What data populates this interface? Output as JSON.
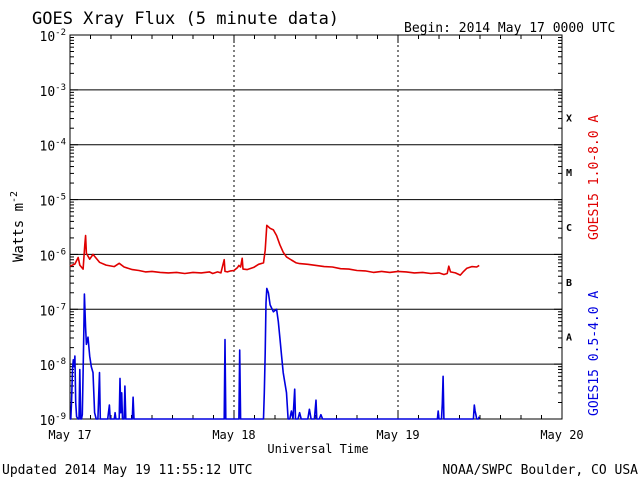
{
  "header": {
    "title": "GOES Xray Flux (5 minute data)",
    "begin": "Begin:  2014 May 17 0000 UTC"
  },
  "footer": {
    "updated": "Updated 2014 May 19 11:55:12 UTC",
    "source": "NOAA/SWPC Boulder, CO USA"
  },
  "chart_data": {
    "type": "line",
    "title": "GOES Xray Flux (5 minute data)",
    "xlabel": "Universal Time",
    "ylabel": "Watts m",
    "ylabel_superscript": "-2",
    "yscale": "log",
    "ylim": [
      1e-09,
      0.01
    ],
    "xlim_days": [
      0,
      3
    ],
    "x_ticks": [
      {
        "day": 0,
        "label": "May 17"
      },
      {
        "day": 1,
        "label": "May 18"
      },
      {
        "day": 2,
        "label": "May 19"
      },
      {
        "day": 3,
        "label": "May 20"
      }
    ],
    "y_ticks": [
      {
        "exp": -2,
        "base": "10",
        "sup": "-2"
      },
      {
        "exp": -3,
        "base": "10",
        "sup": "-3"
      },
      {
        "exp": -4,
        "base": "10",
        "sup": "-4"
      },
      {
        "exp": -5,
        "base": "10",
        "sup": "-5"
      },
      {
        "exp": -6,
        "base": "10",
        "sup": "-6"
      },
      {
        "exp": -7,
        "base": "10",
        "sup": "-7"
      },
      {
        "exp": -8,
        "base": "10",
        "sup": "-8"
      },
      {
        "exp": -9,
        "base": "10",
        "sup": "-9"
      }
    ],
    "flare_classes": [
      {
        "label": "X",
        "exp": -3.5
      },
      {
        "label": "M",
        "exp": -4.5
      },
      {
        "label": "C",
        "exp": -5.5
      },
      {
        "label": "B",
        "exp": -6.5
      },
      {
        "label": "A",
        "exp": -7.5
      }
    ],
    "grid": true,
    "series": [
      {
        "name": "GOES15 1.0-8.0 A",
        "color": "#e00000",
        "points": [
          [
            0.0,
            6.1e-07
          ],
          [
            0.03,
            6.7e-07
          ],
          [
            0.05,
            8.8e-07
          ],
          [
            0.06,
            6.4e-07
          ],
          [
            0.08,
            5.4e-07
          ],
          [
            0.09,
            1.5e-06
          ],
          [
            0.095,
            2.2e-06
          ],
          [
            0.1,
            1.05e-06
          ],
          [
            0.12,
            8.2e-07
          ],
          [
            0.14,
            1e-06
          ],
          [
            0.16,
            8.5e-07
          ],
          [
            0.18,
            7.2e-07
          ],
          [
            0.22,
            6.4e-07
          ],
          [
            0.27,
            6e-07
          ],
          [
            0.3,
            6.9e-07
          ],
          [
            0.33,
            5.9e-07
          ],
          [
            0.38,
            5.3e-07
          ],
          [
            0.42,
            5.1e-07
          ],
          [
            0.46,
            4.8e-07
          ],
          [
            0.5,
            4.9e-07
          ],
          [
            0.55,
            4.7e-07
          ],
          [
            0.6,
            4.6e-07
          ],
          [
            0.65,
            4.7e-07
          ],
          [
            0.7,
            4.5e-07
          ],
          [
            0.75,
            4.7e-07
          ],
          [
            0.8,
            4.6e-07
          ],
          [
            0.85,
            4.8e-07
          ],
          [
            0.87,
            4.5e-07
          ],
          [
            0.9,
            4.8e-07
          ],
          [
            0.92,
            4.6e-07
          ],
          [
            0.94,
            8e-07
          ],
          [
            0.945,
            4.9e-07
          ],
          [
            0.96,
            4.8e-07
          ],
          [
            0.98,
            5e-07
          ],
          [
            1.0,
            5.1e-07
          ],
          [
            1.02,
            5.7e-07
          ],
          [
            1.03,
            6.3e-07
          ],
          [
            1.04,
            5.9e-07
          ],
          [
            1.05,
            8.5e-07
          ],
          [
            1.055,
            5.4e-07
          ],
          [
            1.08,
            5.3e-07
          ],
          [
            1.12,
            5.8e-07
          ],
          [
            1.15,
            6.6e-07
          ],
          [
            1.18,
            7e-07
          ],
          [
            1.19,
            1.2e-06
          ],
          [
            1.2,
            3.4e-06
          ],
          [
            1.22,
            3e-06
          ],
          [
            1.24,
            2.8e-06
          ],
          [
            1.26,
            2.2e-06
          ],
          [
            1.28,
            1.5e-06
          ],
          [
            1.3,
            1.1e-06
          ],
          [
            1.32,
            9e-07
          ],
          [
            1.35,
            7.9e-07
          ],
          [
            1.38,
            7e-07
          ],
          [
            1.4,
            6.8e-07
          ],
          [
            1.45,
            6.6e-07
          ],
          [
            1.5,
            6.3e-07
          ],
          [
            1.55,
            6e-07
          ],
          [
            1.6,
            5.9e-07
          ],
          [
            1.65,
            5.5e-07
          ],
          [
            1.7,
            5.4e-07
          ],
          [
            1.75,
            5.1e-07
          ],
          [
            1.8,
            5e-07
          ],
          [
            1.85,
            4.7e-07
          ],
          [
            1.9,
            4.9e-07
          ],
          [
            1.95,
            4.7e-07
          ],
          [
            2.0,
            4.9e-07
          ],
          [
            2.05,
            4.8e-07
          ],
          [
            2.1,
            4.6e-07
          ],
          [
            2.15,
            4.7e-07
          ],
          [
            2.2,
            4.5e-07
          ],
          [
            2.25,
            4.6e-07
          ],
          [
            2.28,
            4.3e-07
          ],
          [
            2.3,
            4.5e-07
          ],
          [
            2.31,
            6.1e-07
          ],
          [
            2.32,
            4.8e-07
          ],
          [
            2.35,
            4.6e-07
          ],
          [
            2.38,
            4.2e-07
          ],
          [
            2.4,
            4.9e-07
          ],
          [
            2.42,
            5.6e-07
          ],
          [
            2.45,
            6e-07
          ],
          [
            2.48,
            5.9e-07
          ],
          [
            2.495,
            6.3e-07
          ]
        ]
      },
      {
        "name": "GOES15 0.5-4.0 A",
        "color": "#0000e0",
        "points": [
          [
            0.0,
            1e-09
          ],
          [
            0.005,
            1e-09
          ],
          [
            0.01,
            2.2e-09
          ],
          [
            0.015,
            8e-09
          ],
          [
            0.02,
            1.2e-08
          ],
          [
            0.025,
            9e-09
          ],
          [
            0.03,
            1.4e-08
          ],
          [
            0.035,
            2e-09
          ],
          [
            0.04,
            1.1e-09
          ],
          [
            0.05,
            1e-09
          ],
          [
            0.055,
            1e-09
          ],
          [
            0.06,
            8e-09
          ],
          [
            0.065,
            1e-09
          ],
          [
            0.07,
            1e-09
          ],
          [
            0.075,
            1.2e-09
          ],
          [
            0.08,
            7e-09
          ],
          [
            0.085,
            4.8e-08
          ],
          [
            0.088,
            1.9e-07
          ],
          [
            0.095,
            4.6e-08
          ],
          [
            0.1,
            2.3e-08
          ],
          [
            0.11,
            3.1e-08
          ],
          [
            0.12,
            1.4e-08
          ],
          [
            0.13,
            9e-09
          ],
          [
            0.14,
            7e-09
          ],
          [
            0.15,
            1.3e-09
          ],
          [
            0.16,
            1e-09
          ],
          [
            0.17,
            1e-09
          ],
          [
            0.18,
            7e-09
          ],
          [
            0.185,
            1e-09
          ],
          [
            0.2,
            1e-09
          ],
          [
            0.23,
            1e-09
          ],
          [
            0.24,
            1.8e-09
          ],
          [
            0.245,
            1e-09
          ],
          [
            0.27,
            1e-09
          ],
          [
            0.275,
            1.3e-09
          ],
          [
            0.28,
            1e-09
          ],
          [
            0.3,
            1e-09
          ],
          [
            0.305,
            5.5e-09
          ],
          [
            0.31,
            1.3e-09
          ],
          [
            0.315,
            3e-09
          ],
          [
            0.32,
            1e-09
          ],
          [
            0.33,
            1e-09
          ],
          [
            0.335,
            4e-09
          ],
          [
            0.34,
            1e-09
          ],
          [
            0.38,
            1e-09
          ],
          [
            0.385,
            2.5e-09
          ],
          [
            0.39,
            1e-09
          ],
          [
            0.5,
            1e-09
          ],
          [
            0.6,
            1e-09
          ],
          [
            0.7,
            1e-09
          ],
          [
            0.8,
            1e-09
          ],
          [
            0.9,
            1e-09
          ],
          [
            0.94,
            1e-09
          ],
          [
            0.945,
            2.8e-08
          ],
          [
            0.95,
            1e-09
          ],
          [
            1.0,
            1e-09
          ],
          [
            1.03,
            1e-09
          ],
          [
            1.035,
            1.8e-08
          ],
          [
            1.04,
            1e-09
          ],
          [
            1.1,
            1e-09
          ],
          [
            1.18,
            1e-09
          ],
          [
            1.185,
            3e-09
          ],
          [
            1.19,
            1.6e-08
          ],
          [
            1.195,
            1.3e-07
          ],
          [
            1.2,
            2.4e-07
          ],
          [
            1.21,
            2e-07
          ],
          [
            1.22,
            1.2e-07
          ],
          [
            1.24,
            9e-08
          ],
          [
            1.26,
            1e-07
          ],
          [
            1.27,
            6e-08
          ],
          [
            1.28,
            3e-08
          ],
          [
            1.29,
            1.4e-08
          ],
          [
            1.3,
            7e-09
          ],
          [
            1.32,
            3e-09
          ],
          [
            1.33,
            1e-09
          ],
          [
            1.34,
            1e-09
          ],
          [
            1.35,
            1.4e-09
          ],
          [
            1.36,
            1e-09
          ],
          [
            1.37,
            3.5e-09
          ],
          [
            1.375,
            1e-09
          ],
          [
            1.39,
            1e-09
          ],
          [
            1.4,
            1.3e-09
          ],
          [
            1.41,
            1e-09
          ],
          [
            1.45,
            1e-09
          ],
          [
            1.46,
            1.5e-09
          ],
          [
            1.47,
            1e-09
          ],
          [
            1.49,
            1e-09
          ],
          [
            1.5,
            2.2e-09
          ],
          [
            1.505,
            1e-09
          ],
          [
            1.52,
            1e-09
          ],
          [
            1.53,
            1.2e-09
          ],
          [
            1.54,
            1e-09
          ],
          [
            1.6,
            1e-09
          ],
          [
            1.7,
            1e-09
          ],
          [
            1.8,
            1e-09
          ],
          [
            1.9,
            1e-09
          ],
          [
            2.0,
            1e-09
          ],
          [
            2.1,
            1e-09
          ],
          [
            2.2,
            1e-09
          ],
          [
            2.24,
            1e-09
          ],
          [
            2.245,
            1.4e-09
          ],
          [
            2.25,
            1e-09
          ],
          [
            2.265,
            1e-09
          ],
          [
            2.27,
            1.9e-09
          ],
          [
            2.275,
            6e-09
          ],
          [
            2.28,
            1e-09
          ],
          [
            2.3,
            1e-09
          ],
          [
            2.4,
            1e-09
          ],
          [
            2.46,
            1e-09
          ],
          [
            2.465,
            1.8e-09
          ],
          [
            2.47,
            1.4e-09
          ],
          [
            2.475,
            1.2e-09
          ],
          [
            2.48,
            1e-09
          ],
          [
            2.49,
            1e-09
          ],
          [
            2.495,
            1.1e-09
          ]
        ]
      }
    ]
  }
}
